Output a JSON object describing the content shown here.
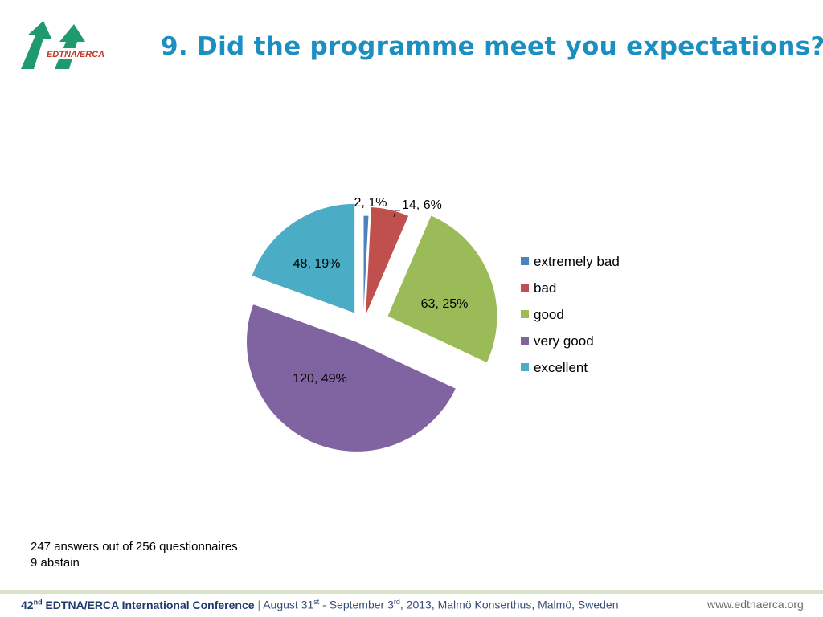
{
  "header": {
    "logo_text": "EDTNA/ERCA",
    "title": "9. Did the programme meet you expectations?"
  },
  "chart_data": {
    "type": "pie",
    "title": "",
    "slices": [
      {
        "name": "extremely bad",
        "value": 2,
        "percent": 1,
        "label": "2, 1%",
        "color": "#4f81bd"
      },
      {
        "name": "bad",
        "value": 14,
        "percent": 6,
        "label": "14, 6%",
        "color": "#c0504d"
      },
      {
        "name": "good",
        "value": 63,
        "percent": 25,
        "label": "63, 25%",
        "color": "#9bbb59"
      },
      {
        "name": "very good",
        "value": 120,
        "percent": 49,
        "label": "120, 49%",
        "color": "#8064a2"
      },
      {
        "name": "excellent",
        "value": 48,
        "percent": 19,
        "label": "48, 19%",
        "color": "#4bacc6"
      }
    ],
    "exploded": true,
    "legend_position": "right"
  },
  "notes": {
    "line1": "247 answers out of 256 questionnaires",
    "line2": "9 abstain"
  },
  "footer": {
    "conference_ordinal": "42",
    "conference_ordinal_suffix": "nd",
    "conference_name": "EDTNA/ERCA International Conference",
    "separator": "|",
    "date_part1": "August 31",
    "date_sup1": "st",
    "date_part2": "- September 3",
    "date_sup2": "rd",
    "date_part3": ", 2013, Malmö Konserthus, Malmö, Sweden",
    "website": "www.edtnaerca.org"
  },
  "colors": {
    "title": "#1a8fc0",
    "logo_green": "#1e9a6e",
    "logo_red": "#c0392b"
  }
}
